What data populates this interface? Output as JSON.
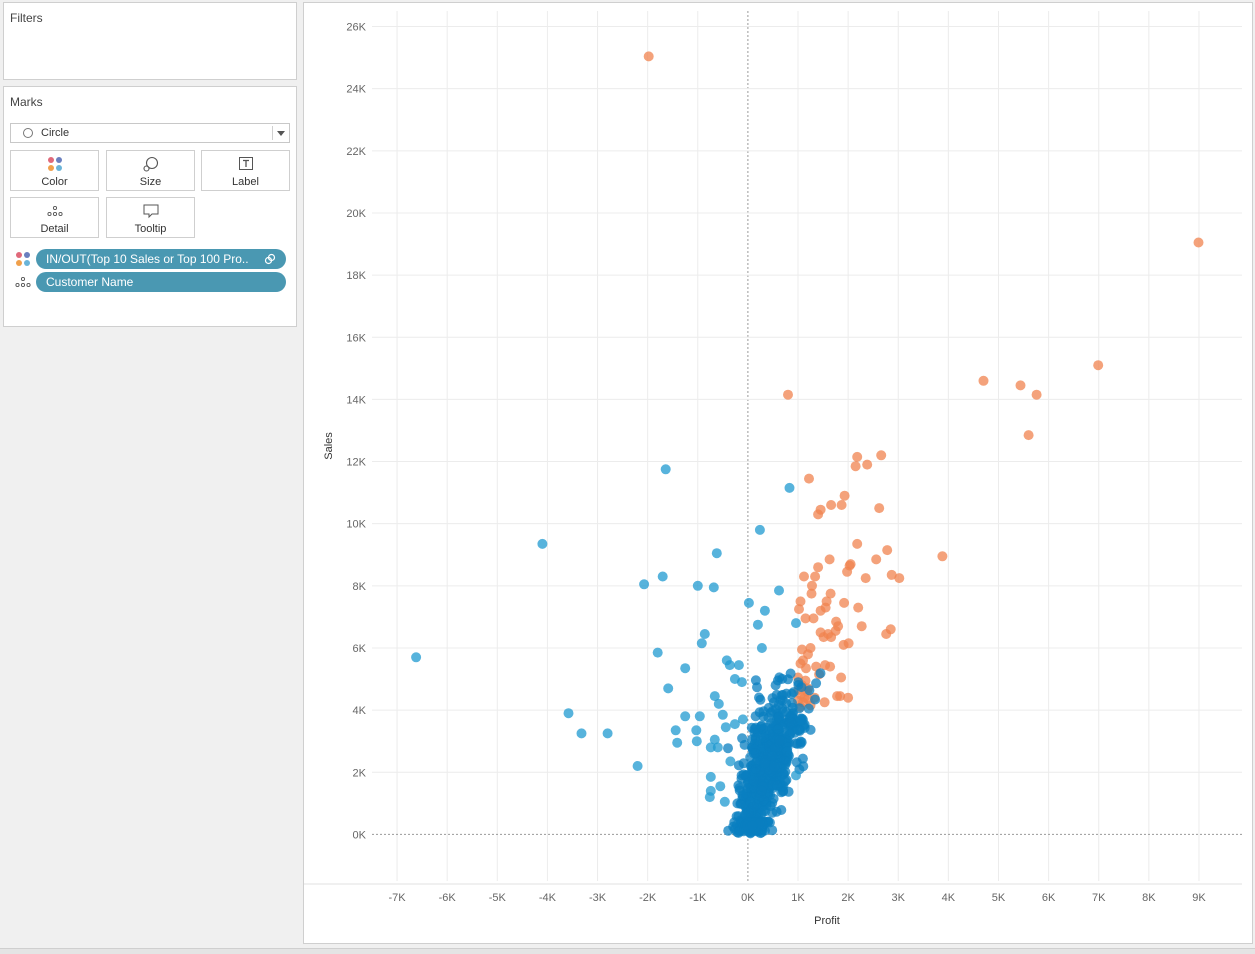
{
  "filters": {
    "title": "Filters"
  },
  "marks": {
    "title": "Marks",
    "mark_type": "Circle",
    "buttons": {
      "color": "Color",
      "size": "Size",
      "label": "Label",
      "detail": "Detail",
      "tooltip": "Tooltip"
    },
    "pills": [
      {
        "text": "IN/OUT(Top 10 Sales or Top 100 Pro..",
        "role": "color"
      },
      {
        "text": "Customer Name",
        "role": "detail"
      }
    ]
  },
  "colors": {
    "in": "#f0834f",
    "in_dense": "#e8541a",
    "out": "#1f9ad0",
    "out_dense": "#0a7fc0",
    "pill": "#4a98b2"
  },
  "chart_data": {
    "type": "scatter",
    "xlabel": "Profit",
    "ylabel": "Sales",
    "xlim": [
      -7500,
      9300
    ],
    "ylim": [
      -1500,
      26500
    ],
    "x_ticks": [
      {
        "v": -7000,
        "label": "-7K"
      },
      {
        "v": -6000,
        "label": "-6K"
      },
      {
        "v": -5000,
        "label": "-5K"
      },
      {
        "v": -4000,
        "label": "-4K"
      },
      {
        "v": -3000,
        "label": "-3K"
      },
      {
        "v": -2000,
        "label": "-2K"
      },
      {
        "v": -1000,
        "label": "-1K"
      },
      {
        "v": 0,
        "label": "0K"
      },
      {
        "v": 1000,
        "label": "1K"
      },
      {
        "v": 2000,
        "label": "2K"
      },
      {
        "v": 3000,
        "label": "3K"
      },
      {
        "v": 4000,
        "label": "4K"
      },
      {
        "v": 5000,
        "label": "5K"
      },
      {
        "v": 6000,
        "label": "6K"
      },
      {
        "v": 7000,
        "label": "7K"
      },
      {
        "v": 8000,
        "label": "8K"
      },
      {
        "v": 9000,
        "label": "9K"
      }
    ],
    "y_ticks": [
      {
        "v": 0,
        "label": "0K"
      },
      {
        "v": 2000,
        "label": "2K"
      },
      {
        "v": 4000,
        "label": "4K"
      },
      {
        "v": 6000,
        "label": "6K"
      },
      {
        "v": 8000,
        "label": "8K"
      },
      {
        "v": 10000,
        "label": "10K"
      },
      {
        "v": 12000,
        "label": "12K"
      },
      {
        "v": 14000,
        "label": "14K"
      },
      {
        "v": 16000,
        "label": "16K"
      },
      {
        "v": 18000,
        "label": "18K"
      },
      {
        "v": 20000,
        "label": "20K"
      },
      {
        "v": 22000,
        "label": "22K"
      },
      {
        "v": 24000,
        "label": "24K"
      },
      {
        "v": 26000,
        "label": "26K"
      }
    ],
    "grid": true,
    "series": [
      {
        "key": "in",
        "points": [
          [
            -1980,
            25040
          ],
          [
            8990,
            19050
          ],
          [
            6990,
            15100
          ],
          [
            4700,
            14600
          ],
          [
            5440,
            14450
          ],
          [
            5760,
            14150
          ],
          [
            800,
            14150
          ],
          [
            5600,
            12850
          ],
          [
            2660,
            12200
          ],
          [
            2180,
            12150
          ],
          [
            2380,
            11900
          ],
          [
            2150,
            11850
          ],
          [
            1220,
            11450
          ],
          [
            1930,
            10900
          ],
          [
            2620,
            10500
          ],
          [
            1660,
            10600
          ],
          [
            1450,
            10450
          ],
          [
            1400,
            10300
          ],
          [
            1870,
            10600
          ],
          [
            3880,
            8950
          ],
          [
            2180,
            9350
          ],
          [
            2780,
            9150
          ],
          [
            1630,
            8850
          ],
          [
            2560,
            8850
          ],
          [
            2050,
            8700
          ],
          [
            2030,
            8650
          ],
          [
            1400,
            8600
          ],
          [
            1980,
            8450
          ],
          [
            2350,
            8250
          ],
          [
            2870,
            8350
          ],
          [
            3020,
            8250
          ],
          [
            1120,
            8300
          ],
          [
            1340,
            8300
          ],
          [
            1280,
            8000
          ],
          [
            1650,
            7750
          ],
          [
            1570,
            7500
          ],
          [
            1270,
            7750
          ],
          [
            1050,
            7500
          ],
          [
            1550,
            7300
          ],
          [
            1450,
            7200
          ],
          [
            1920,
            7450
          ],
          [
            2200,
            7300
          ],
          [
            1020,
            7250
          ],
          [
            1150,
            6950
          ],
          [
            1310,
            6950
          ],
          [
            1760,
            6850
          ],
          [
            1800,
            6700
          ],
          [
            2270,
            6700
          ],
          [
            2850,
            6600
          ],
          [
            2760,
            6450
          ],
          [
            1450,
            6500
          ],
          [
            1600,
            6450
          ],
          [
            1510,
            6350
          ],
          [
            1660,
            6350
          ],
          [
            1750,
            6550
          ],
          [
            1910,
            6100
          ],
          [
            2010,
            6150
          ],
          [
            1250,
            6000
          ],
          [
            1080,
            5950
          ],
          [
            1200,
            5800
          ],
          [
            1100,
            5600
          ],
          [
            1050,
            5500
          ],
          [
            1360,
            5400
          ],
          [
            1540,
            5450
          ],
          [
            1640,
            5400
          ],
          [
            1160,
            5350
          ],
          [
            1420,
            5150
          ],
          [
            1860,
            5050
          ],
          [
            1000,
            5050
          ],
          [
            1150,
            4950
          ],
          [
            1080,
            4800
          ],
          [
            1200,
            4700
          ],
          [
            1010,
            4650
          ],
          [
            1180,
            4600
          ],
          [
            1050,
            4500
          ],
          [
            1130,
            4400
          ],
          [
            1000,
            4300
          ],
          [
            1100,
            4250
          ],
          [
            1200,
            4350
          ],
          [
            1330,
            4400
          ],
          [
            1530,
            4250
          ],
          [
            1780,
            4450
          ],
          [
            1840,
            4450
          ],
          [
            2000,
            4400
          ],
          [
            1250,
            4150
          ],
          [
            1050,
            4100
          ]
        ]
      },
      {
        "key": "out",
        "points": [
          [
            -6620,
            5700
          ],
          [
            -4100,
            9350
          ],
          [
            -1640,
            11750
          ],
          [
            -2070,
            8050
          ],
          [
            -1700,
            8300
          ],
          [
            -1000,
            8000
          ],
          [
            -680,
            7950
          ],
          [
            -620,
            9050
          ],
          [
            -1800,
            5850
          ],
          [
            -1590,
            4700
          ],
          [
            -1250,
            5350
          ],
          [
            -860,
            6450
          ],
          [
            -920,
            6150
          ],
          [
            -3580,
            3900
          ],
          [
            -3320,
            3250
          ],
          [
            -2800,
            3250
          ],
          [
            -2200,
            2200
          ],
          [
            -1440,
            3350
          ],
          [
            -1410,
            2950
          ],
          [
            -1250,
            3800
          ],
          [
            -1030,
            3350
          ],
          [
            -960,
            3800
          ],
          [
            -1020,
            3000
          ],
          [
            -660,
            4450
          ],
          [
            -580,
            4200
          ],
          [
            -660,
            3050
          ],
          [
            -740,
            2800
          ],
          [
            -600,
            2800
          ],
          [
            240,
            9800
          ],
          [
            830,
            11150
          ],
          [
            20,
            7450
          ],
          [
            340,
            7200
          ],
          [
            620,
            7850
          ],
          [
            960,
            6800
          ],
          [
            200,
            6750
          ],
          [
            280,
            6000
          ],
          [
            -420,
            5600
          ],
          [
            -360,
            5450
          ],
          [
            -180,
            5450
          ],
          [
            -260,
            5000
          ],
          [
            -120,
            4900
          ],
          [
            -500,
            3850
          ],
          [
            -440,
            3450
          ],
          [
            -260,
            3550
          ],
          [
            -100,
            3700
          ],
          [
            -740,
            1850
          ],
          [
            -740,
            1400
          ],
          [
            -760,
            1200
          ],
          [
            -550,
            1550
          ],
          [
            -460,
            1050
          ],
          [
            -350,
            2350
          ],
          [
            960,
            1900
          ]
        ],
        "cluster": {
          "x_mean": 250,
          "x_sd": 330,
          "y_mean": 2000,
          "y_sd": 1350,
          "n": 620,
          "slope": 0.33
        }
      }
    ]
  }
}
